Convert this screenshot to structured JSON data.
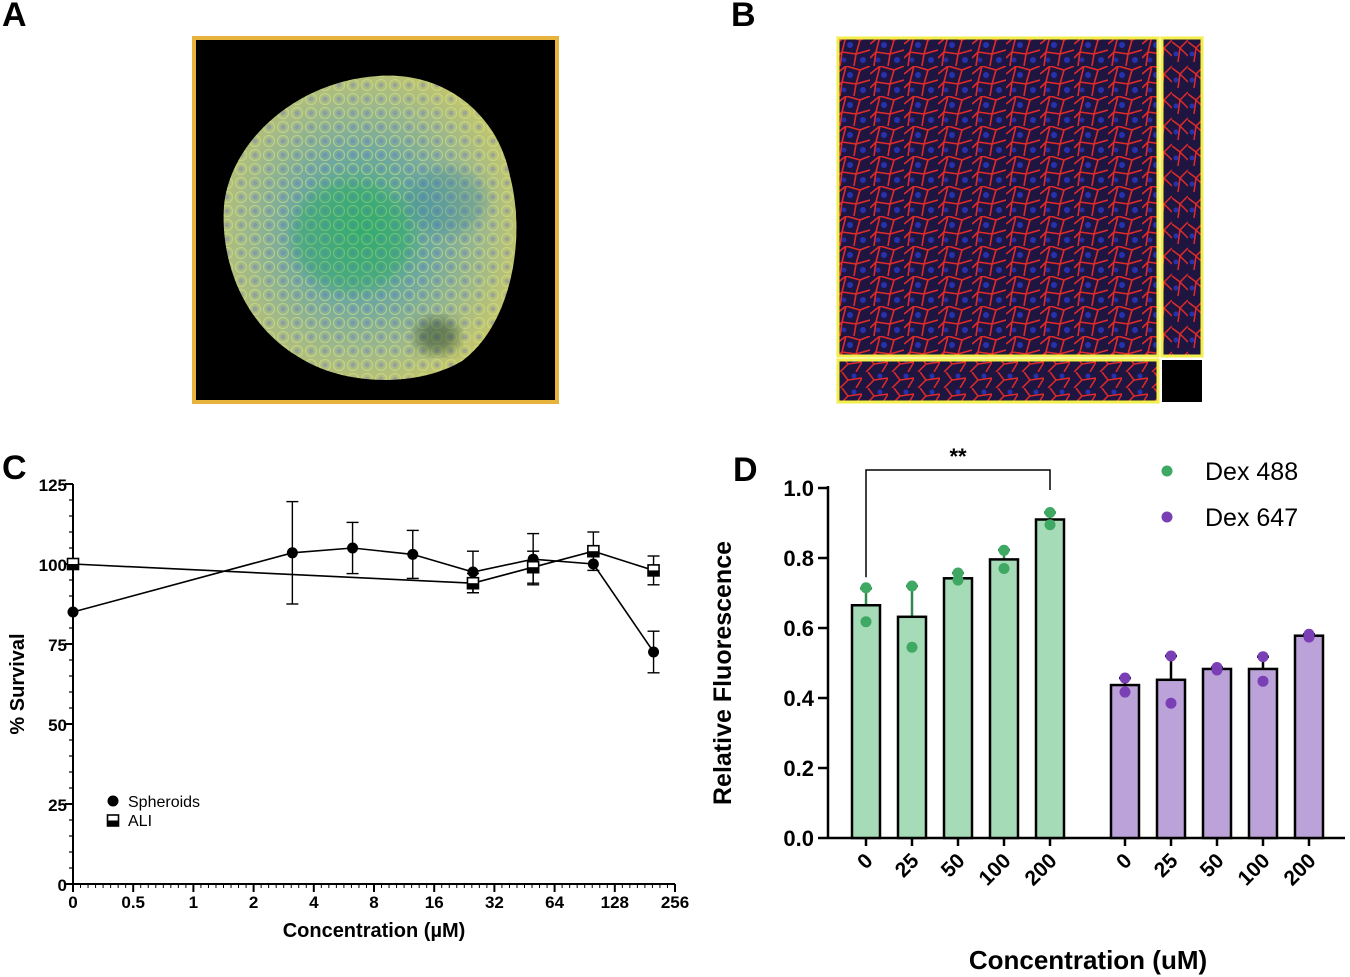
{
  "panels": {
    "a": {
      "letter": "A",
      "frame_color": "#e8b33a"
    },
    "b": {
      "letter": "B",
      "frame_color": "#f2ee4a"
    },
    "c": {
      "letter": "C"
    },
    "d": {
      "letter": "D"
    }
  },
  "chart_data": [
    {
      "panel": "C",
      "type": "line",
      "title": "",
      "xlabel": "Concentration (µM)",
      "ylabel": "% Survival",
      "x_scale": "log2",
      "x_tick_labels": [
        "0",
        "0.5",
        "1",
        "2",
        "4",
        "8",
        "16",
        "32",
        "64",
        "128",
        "256"
      ],
      "y_ticks": [
        0,
        25,
        50,
        75,
        100,
        125
      ],
      "ylim": [
        0,
        125
      ],
      "grid": false,
      "legend_position": "bottom-left",
      "series": [
        {
          "name": "Spheroids",
          "marker": "circle",
          "x": [
            0,
            3.125,
            6.25,
            12.5,
            25,
            50,
            100,
            200
          ],
          "y": [
            85,
            103.5,
            105,
            103,
            97.5,
            101.5,
            100,
            72.5
          ],
          "err": [
            0,
            16,
            8,
            7.5,
            6.5,
            8,
            0,
            6.5
          ]
        },
        {
          "name": "ALI",
          "marker": "square",
          "x": [
            0,
            25,
            50,
            100,
            200
          ],
          "y": [
            100,
            94,
            99,
            104,
            98
          ],
          "err": [
            0,
            3,
            5,
            6,
            4.5
          ]
        }
      ]
    },
    {
      "panel": "D",
      "type": "bar",
      "title": "",
      "xlabel": "Concentration (uM)",
      "ylabel": "Relative Fluorescence",
      "ylim": [
        0,
        1.0
      ],
      "y_tick_labels": [
        "0.0",
        "0.2",
        "0.4",
        "0.6",
        "0.8",
        "1.0"
      ],
      "legend_position": "top-right",
      "significance": {
        "label": "**",
        "between": [
          "Dex 488 0",
          "Dex 488 200"
        ]
      },
      "groups": [
        {
          "name": "Dex 488",
          "color": "#a6dbb8",
          "dot_color": "#3fa862",
          "categories": [
            "0",
            "25",
            "50",
            "100",
            "200"
          ],
          "values": [
            0.665,
            0.632,
            0.742,
            0.796,
            0.91
          ],
          "err": [
            0.048,
            0.088,
            0.015,
            0.027,
            0.02
          ],
          "points": [
            [
              0.715,
              0.618
            ],
            [
              0.72,
              0.545
            ],
            [
              0.757,
              0.737
            ],
            [
              0.822,
              0.77
            ],
            [
              0.93,
              0.895
            ]
          ]
        },
        {
          "name": "Dex 647",
          "color": "#bba3d9",
          "dot_color": "#7a3fb5",
          "categories": [
            "0",
            "25",
            "50",
            "100",
            "200"
          ],
          "values": [
            0.437,
            0.452,
            0.483,
            0.483,
            0.578
          ],
          "err": [
            0.02,
            0.068,
            0.004,
            0.035,
            0.004
          ],
          "points": [
            [
              0.457,
              0.417
            ],
            [
              0.52,
              0.385
            ],
            [
              0.487,
              0.48
            ],
            [
              0.518,
              0.448
            ],
            [
              0.582,
              0.574
            ]
          ]
        }
      ]
    }
  ]
}
